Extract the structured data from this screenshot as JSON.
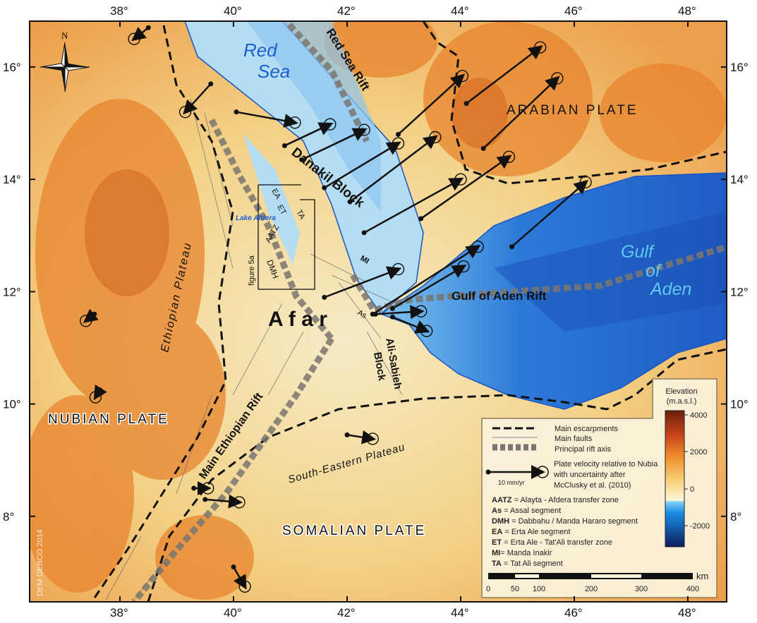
{
  "map": {
    "lon_ticks": [
      38,
      40,
      42,
      44,
      46,
      48
    ],
    "lat_ticks": [
      16,
      14,
      12,
      10,
      8
    ],
    "degree_symbol": "°",
    "watermark": "DEM GEBCO 2014",
    "compass": "N"
  },
  "labels": {
    "red_sea": [
      "Red",
      "Sea"
    ],
    "red_sea_rift": "Red Sea Rift",
    "arabian_plate": "ARABIAN PLATE",
    "danakil_block": "Danakil Block",
    "ethiopian_plateau": "Ethiopian Plateau",
    "lake_afdera": "Lake Afdera",
    "ea": "EA",
    "et": "ET",
    "ta": "TA",
    "aatz": "AATZ",
    "dmh": "DMH",
    "figure_5a": "figure 5a",
    "mi": "MI",
    "as": "As",
    "afar": "A f a r",
    "gulf_of_aden_rift": "Gulf of Aden Rift",
    "gulf_of_aden": [
      "Gulf",
      "of",
      "Aden"
    ],
    "ali_sabieh_block": [
      "Ali-Sabieh",
      "Block"
    ],
    "nubian_plate": "NUBIAN PLATE",
    "main_ethiopian_rift": "Main Ethiopian Rift",
    "south_eastern_plateau": "South-Eastern Plateau",
    "somalian_plate": "SOMALIAN PLATE"
  },
  "legend": {
    "main_escarpments": "Main escarpments",
    "main_faults": "Main faults",
    "principal_rift_axis": "Principal rift axis",
    "velocity_lines": [
      "Plate velocity relative to Nubia",
      "with uncertainty after",
      "McClusky et al. (2010)"
    ],
    "velocity_scale": "10 mm/yr",
    "abbreviations": [
      {
        "abbr": "AATZ",
        "text": " = Alayta - Afdera transfer zone"
      },
      {
        "abbr": "As",
        "text": " = Assal segment"
      },
      {
        "abbr": "DMH",
        "text": " = Dabbahu / Manda Hararo segment"
      },
      {
        "abbr": "EA",
        "text": " = Erta Ale segment"
      },
      {
        "abbr": "ET",
        "text": " = Erta Ale - Tat'Ali transfer zone"
      },
      {
        "abbr": "MI",
        "text": "= Manda Inakir"
      },
      {
        "abbr": "TA",
        "text": " = Tat Ali segment"
      }
    ],
    "scale_unit": "km",
    "scale_ticks": [
      "0",
      "50",
      "100",
      "200",
      "300",
      "400"
    ],
    "elevation_title": [
      "Elevation",
      "(m.a.s.l.)"
    ],
    "elevation_ticks": [
      "4000",
      "2000",
      "0",
      "-2000"
    ]
  },
  "colors": {
    "sea_shallow": "#a9d4ef",
    "sea_deep": "#1a4fb5",
    "land_low": "#f3e6b8",
    "land_high": "#e07a2a",
    "rift_axis": "#7a7570"
  },
  "velocity_vectors": [
    [
      40.05,
      15.2,
      41.08,
      15.01
    ],
    [
      40.9,
      14.6,
      41.7,
      14.98
    ],
    [
      41.2,
      14.35,
      42.3,
      14.88
    ],
    [
      41.6,
      13.85,
      42.9,
      14.64
    ],
    [
      42.05,
      13.6,
      43.55,
      14.75
    ],
    [
      42.3,
      13.05,
      44.0,
      14.0
    ],
    [
      42.9,
      14.8,
      44.03,
      15.84
    ],
    [
      44.1,
      15.35,
      45.4,
      16.35
    ],
    [
      44.4,
      14.55,
      45.7,
      15.8
    ],
    [
      43.3,
      13.3,
      44.85,
      14.4
    ],
    [
      44.9,
      12.8,
      46.2,
      13.95
    ],
    [
      41.6,
      11.9,
      42.9,
      12.4
    ],
    [
      42.45,
      11.6,
      44.3,
      12.8
    ],
    [
      42.8,
      11.7,
      44.05,
      12.45
    ],
    [
      42.5,
      11.6,
      43.3,
      11.65
    ],
    [
      42.8,
      11.55,
      43.4,
      11.3
    ],
    [
      37.55,
      11.6,
      37.4,
      11.48
    ],
    [
      37.65,
      10.25,
      37.57,
      10.12
    ],
    [
      40.0,
      7.1,
      40.2,
      6.75
    ],
    [
      42.0,
      9.45,
      42.45,
      9.38
    ],
    [
      39.3,
      8.5,
      39.55,
      8.5
    ],
    [
      39.5,
      8.3,
      40.1,
      8.25
    ],
    [
      38.5,
      16.7,
      38.25,
      16.5
    ],
    [
      39.6,
      15.7,
      39.15,
      15.2
    ]
  ]
}
